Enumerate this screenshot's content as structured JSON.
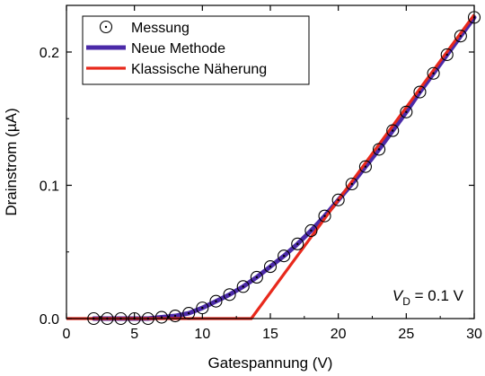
{
  "chart_data": {
    "type": "scatter",
    "xlabel": "Gatespannung (V)",
    "ylabel": "Drainstrom (µA)",
    "xlim": [
      0,
      30
    ],
    "ylim": [
      0,
      0.235
    ],
    "xticks": [
      0,
      5,
      10,
      15,
      20,
      25,
      30
    ],
    "xtick_labels": [
      "0",
      "5",
      "10",
      "15",
      "20",
      "25",
      "30"
    ],
    "yticks": [
      0.0,
      0.1,
      0.2
    ],
    "ytick_labels": [
      "0.0",
      "0.1",
      "0.2"
    ],
    "grid": false,
    "legend_position": "top-left",
    "annotation": {
      "main": "V",
      "sub": "D",
      "rest": " = 0.1 V"
    },
    "series": [
      {
        "name": "Messung",
        "kind": "markers",
        "marker": "circle-dot",
        "color": "#000000",
        "x": [
          2,
          3,
          4,
          5,
          6,
          7,
          8,
          9,
          10,
          11,
          12,
          13,
          14,
          15,
          16,
          17,
          18,
          19,
          20,
          21,
          22,
          23,
          24,
          25,
          26,
          27,
          28,
          29,
          30
        ],
        "y": [
          0.0,
          0.0,
          0.0,
          0.0,
          0.0,
          0.001,
          0.002,
          0.004,
          0.008,
          0.013,
          0.018,
          0.024,
          0.031,
          0.039,
          0.047,
          0.056,
          0.066,
          0.077,
          0.089,
          0.101,
          0.114,
          0.127,
          0.141,
          0.155,
          0.17,
          0.184,
          0.198,
          0.212,
          0.226
        ]
      },
      {
        "name": "Neue Methode",
        "kind": "line",
        "color": "#4b2aa8",
        "x": [
          2,
          3,
          4,
          5,
          6,
          7,
          8,
          9,
          10,
          11,
          12,
          13,
          14,
          15,
          16,
          17,
          18,
          19,
          20,
          21,
          22,
          23,
          24,
          25,
          26,
          27,
          28,
          29,
          30
        ],
        "y": [
          0.0,
          0.0,
          0.0,
          0.0,
          0.0,
          0.001,
          0.002,
          0.004,
          0.008,
          0.013,
          0.018,
          0.024,
          0.031,
          0.039,
          0.047,
          0.056,
          0.066,
          0.077,
          0.089,
          0.101,
          0.114,
          0.127,
          0.141,
          0.155,
          0.17,
          0.184,
          0.198,
          0.212,
          0.226
        ]
      },
      {
        "name": "Klassische Näherung",
        "kind": "line",
        "color": "#e8291c",
        "x": [
          0,
          13.6,
          30
        ],
        "y": [
          0.0,
          0.0,
          0.228
        ]
      }
    ]
  }
}
